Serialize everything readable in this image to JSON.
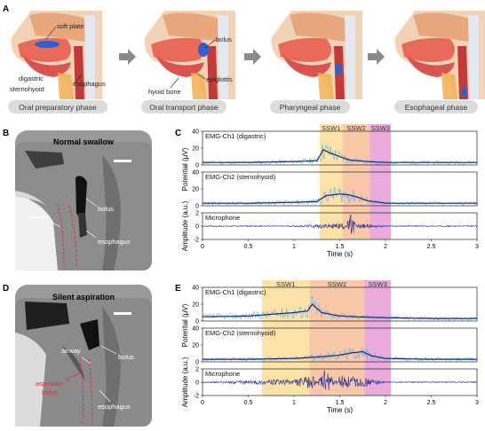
{
  "panels": {
    "a": "A",
    "b": "B",
    "c": "C",
    "d": "D",
    "e": "E"
  },
  "phases": [
    "Oral preparatory phase",
    "Oral transport phase",
    "Pharyngeal phase",
    "Esophageal phase"
  ],
  "anatomy_labels": {
    "soft_plate": "soft plate",
    "digastric": "digastric",
    "sternohyoid": "sternohyoid",
    "esophagus": "esophagus",
    "bolus": "bolus",
    "hyoid_bone": "hyoid bone",
    "epiglottis": "epiglottis"
  },
  "panel_b": {
    "title": "Normal swallow",
    "airway": "airway",
    "bolus": "bolus",
    "esophagus": "esophagus"
  },
  "panel_d": {
    "title": "Silent aspiration",
    "airway": "airway",
    "bolus": "bolus",
    "aspirated_1": "aspirated",
    "aspirated_2": "bolus",
    "esophagus": "esophagus"
  },
  "panel_c": {
    "ch1": "EMG-Ch1 (digastric)",
    "ch2": "EMG-Ch2 (sternohyoid)",
    "mic": "Microphone",
    "ylabel_emg": "Potential (μV)",
    "ylabel_mic": "Amplitude (a.u.)",
    "xlabel": "Time (s)",
    "phases": [
      {
        "label": "SSW1",
        "start": 1.28,
        "end": 1.53,
        "color": "#f9d98a"
      },
      {
        "label": "SSW2",
        "start": 1.53,
        "end": 1.83,
        "color": "#f6b58c"
      },
      {
        "label": "SSW3",
        "start": 1.83,
        "end": 2.06,
        "color": "#e38fd0"
      }
    ]
  },
  "panel_e": {
    "ch1": "EMG-Ch1 (digastric)",
    "ch2": "EMG-Ch2 (sternohyoid)",
    "mic": "Microphone",
    "ylabel_emg": "Potential (μV)",
    "ylabel_mic": "Amplitude (a.u.)",
    "xlabel": "Time (s)",
    "phases": [
      {
        "label": "SSW1",
        "start": 0.65,
        "end": 1.17,
        "color": "#f9d98a"
      },
      {
        "label": "SSW2",
        "start": 1.17,
        "end": 1.77,
        "color": "#f6b58c"
      },
      {
        "label": "SSW3",
        "start": 1.77,
        "end": 2.06,
        "color": "#e38fd0"
      }
    ]
  },
  "axes": {
    "x_ticks": [
      "0",
      "0.5",
      "1",
      "1.5",
      "2",
      "2.5",
      "3"
    ],
    "emg_ticks": [
      "0",
      "20",
      "40"
    ],
    "mic_ticks": [
      "-2",
      "0",
      "2"
    ]
  },
  "chart_data": [
    {
      "type": "line",
      "title": "",
      "xlabel": "Time (s)",
      "ylabel": "Potential (μV)",
      "xlim": [
        0,
        3
      ],
      "ylim": [
        0,
        40
      ],
      "series": [
        {
          "name": "EMG-Ch1 (digastric)",
          "x": [
            0,
            0.5,
            1,
            1.25,
            1.32,
            1.4,
            1.5,
            1.6,
            1.8,
            2,
            2.5,
            3
          ],
          "values": [
            3,
            3,
            4,
            5,
            18,
            14,
            10,
            6,
            4,
            3,
            3,
            3
          ]
        },
        {
          "name": "EMG-Ch2 (sternohyoid)",
          "x": [
            0,
            0.5,
            1,
            1.25,
            1.35,
            1.5,
            1.6,
            1.7,
            1.8,
            2,
            2.5,
            3
          ],
          "values": [
            3,
            3,
            4,
            5,
            12,
            14,
            13,
            10,
            6,
            3,
            3,
            3
          ]
        }
      ]
    },
    {
      "type": "line",
      "title": "",
      "xlabel": "Time (s)",
      "ylabel": "Amplitude (a.u.)",
      "xlim": [
        0,
        3
      ],
      "ylim": [
        -2,
        2
      ],
      "series": [
        {
          "name": "Microphone",
          "x": [
            0,
            1,
            1.55,
            1.62,
            1.7,
            2,
            3
          ],
          "values": [
            0,
            0,
            0.4,
            -1.8,
            0.3,
            0,
            0
          ]
        }
      ]
    },
    {
      "type": "line",
      "title": "",
      "xlabel": "Time (s)",
      "ylabel": "Potential (μV)",
      "xlim": [
        0,
        3
      ],
      "ylim": [
        0,
        40
      ],
      "series": [
        {
          "name": "EMG-Ch1 (digastric)",
          "x": [
            0,
            0.5,
            1,
            1.15,
            1.2,
            1.3,
            1.5,
            1.7,
            2,
            2.5,
            3
          ],
          "values": [
            5,
            6,
            10,
            12,
            20,
            10,
            6,
            5,
            4,
            3,
            3
          ]
        },
        {
          "name": "EMG-Ch2 (sternohyoid)",
          "x": [
            0,
            0.5,
            1,
            1.3,
            1.5,
            1.65,
            1.75,
            1.85,
            2,
            2.5,
            3
          ],
          "values": [
            3,
            3,
            4,
            6,
            8,
            11,
            12,
            7,
            4,
            3,
            3
          ]
        }
      ]
    },
    {
      "type": "line",
      "title": "",
      "xlabel": "Time (s)",
      "ylabel": "Amplitude (a.u.)",
      "xlim": [
        0,
        3
      ],
      "ylim": [
        -2,
        2
      ],
      "series": [
        {
          "name": "Microphone",
          "x": [
            0,
            0.5,
            1,
            1.2,
            1.35,
            1.5,
            1.8,
            2,
            3
          ],
          "values": [
            0,
            0.2,
            0.4,
            1,
            -2,
            1,
            0.5,
            0,
            0
          ]
        }
      ]
    }
  ]
}
